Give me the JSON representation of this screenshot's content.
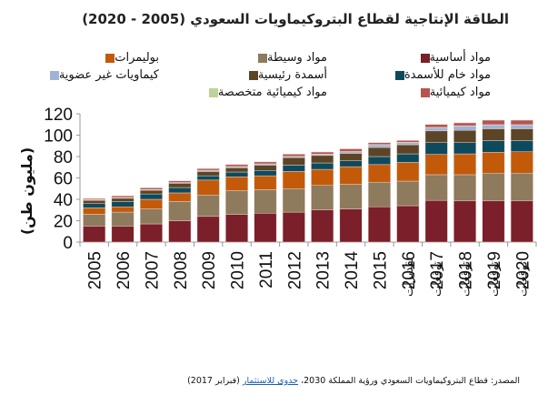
{
  "chart_data": {
    "type": "bar",
    "stacked": true,
    "title": "الطاقة الإنتاجية لقطاع البتروكيماويات السعودي (2005 - 2020)",
    "xlabel": "",
    "ylabel": "(مليون طن)",
    "ylim": [
      0,
      120
    ],
    "yticks": [
      0,
      20,
      40,
      60,
      80,
      100,
      120
    ],
    "grid": false,
    "legend_position": "top",
    "categories": [
      "2005",
      "2006",
      "2007",
      "2008",
      "2009",
      "2010",
      "2011",
      "2012",
      "2013",
      "2014",
      "2015",
      "2016",
      "2017",
      "2018",
      "2019",
      "2020"
    ],
    "category_sublabels": [
      "",
      "",
      "",
      "",
      "",
      "",
      "",
      "",
      "",
      "",
      "",
      "تقديرات",
      "توقعات",
      "توقعات",
      "توقعات",
      "توقعات"
    ],
    "series": [
      {
        "name": "مواد أساسية",
        "color": "#7b1f2a",
        "values": [
          15,
          15,
          17,
          20,
          24,
          26,
          27,
          28,
          30,
          31,
          33,
          34,
          39,
          38.5,
          38.5,
          38.5
        ]
      },
      {
        "name": "مواد وسيطة",
        "color": "#8e7a5c",
        "values": [
          11,
          13,
          14,
          18,
          20,
          22,
          22,
          22,
          23,
          23,
          23,
          23,
          24,
          24.5,
          26,
          26
        ]
      },
      {
        "name": "بوليمرات",
        "color": "#c35a0a",
        "values": [
          6,
          5,
          9,
          8,
          14,
          13,
          13,
          16,
          15,
          16.5,
          16.5,
          17.5,
          19,
          19.5,
          19.5,
          20
        ]
      },
      {
        "name": "مواد خام للأسمدة",
        "color": "#0e4a5e",
        "values": [
          4,
          5,
          5,
          5,
          4,
          4.5,
          5,
          6,
          6,
          5.5,
          7.5,
          8,
          11,
          10.5,
          11,
          10.5
        ]
      },
      {
        "name": "أسمدة رئيسية",
        "color": "#5c4526",
        "values": [
          3,
          3,
          3.5,
          4,
          4,
          4,
          5,
          7,
          7,
          7,
          8.5,
          8.5,
          11,
          11.5,
          11,
          11
        ]
      },
      {
        "name": "كيماويات غير عضوية",
        "color": "#9fb3d6",
        "values": [
          0.5,
          0.5,
          0.5,
          0.5,
          1,
          1,
          1,
          1,
          1,
          1.5,
          2.5,
          2,
          3,
          4,
          3.5,
          3.5
        ]
      },
      {
        "name": "مواد كيميائية متخصصة",
        "color": "#bcd49a",
        "values": [
          0.2,
          0.2,
          0.2,
          0.2,
          0.2,
          0.2,
          0.2,
          0.2,
          0.2,
          0.2,
          0.3,
          0.3,
          0.3,
          0.3,
          0.3,
          0.3
        ]
      },
      {
        "name": "مواد كيميائية",
        "color": "#b85450",
        "values": [
          1,
          1.5,
          1.5,
          1.5,
          1.5,
          1.8,
          1.8,
          2,
          2,
          2.5,
          1.7,
          1.7,
          2.7,
          2.7,
          4.2,
          4.2
        ]
      }
    ]
  },
  "legend_rows": [
    [
      0,
      1,
      2
    ],
    [
      3,
      4,
      5
    ],
    [
      7,
      6
    ]
  ],
  "source": {
    "prefix": "المصدر: قطاع البتروكيماويات السعودي ورؤية المملكة 2030، ",
    "link_text": "جدوى للاستثمار",
    "suffix": " (فبراير 2017)"
  }
}
